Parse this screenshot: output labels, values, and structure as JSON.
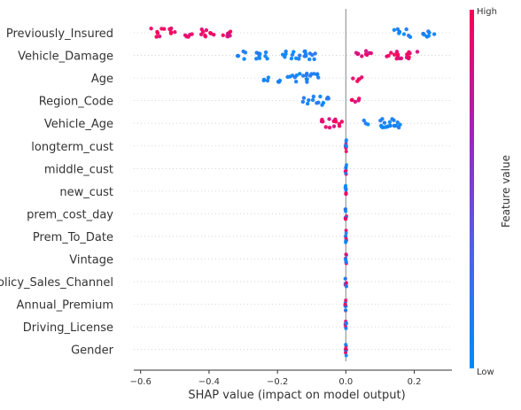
{
  "chart_data": {
    "type": "scatter",
    "subtype": "shap_beeswarm_summary",
    "xlabel": "SHAP value (impact on model output)",
    "xlim": [
      -0.62,
      0.31
    ],
    "x_ticks": [
      -0.6,
      -0.4,
      -0.2,
      0.0,
      0.2
    ],
    "x_tick_labels": [
      "−0.6",
      "−0.4",
      "−0.2",
      "0.0",
      "0.2"
    ],
    "features": [
      {
        "name": "Previously_Insured",
        "high_value_ranges": [
          [
            -0.57,
            -0.53
          ],
          [
            -0.52,
            -0.49
          ],
          [
            -0.47,
            -0.44
          ],
          [
            -0.43,
            -0.38
          ],
          [
            -0.37,
            -0.33
          ]
        ],
        "low_value_ranges": [
          [
            0.13,
            0.16
          ],
          [
            0.17,
            0.19
          ],
          [
            0.22,
            0.27
          ]
        ]
      },
      {
        "name": "Vehicle_Damage",
        "high_value_ranges": [
          [
            0.03,
            0.08
          ],
          [
            0.11,
            0.21
          ]
        ],
        "low_value_ranges": [
          [
            -0.32,
            -0.29
          ],
          [
            -0.27,
            -0.22
          ],
          [
            -0.19,
            -0.15
          ],
          [
            -0.15,
            -0.08
          ]
        ]
      },
      {
        "name": "Age",
        "high_value_ranges": [
          [
            0.02,
            0.05
          ]
        ],
        "low_value_ranges": [
          [
            -0.24,
            -0.22
          ],
          [
            -0.2,
            -0.08
          ]
        ]
      },
      {
        "name": "Region_Code",
        "high_value_ranges": [
          [
            0.01,
            0.04
          ]
        ],
        "low_value_ranges": [
          [
            -0.13,
            -0.05
          ]
        ]
      },
      {
        "name": "Vehicle_Age",
        "high_value_ranges": [
          [
            -0.08,
            -0.01
          ]
        ],
        "low_value_ranges": [
          [
            0.03,
            0.16
          ]
        ]
      },
      {
        "name": "longterm_cust",
        "range": [
          -0.002,
          0.002
        ]
      },
      {
        "name": "middle_cust",
        "range": [
          -0.002,
          0.002
        ]
      },
      {
        "name": "new_cust",
        "range": [
          -0.002,
          0.002
        ]
      },
      {
        "name": "prem_cost_day",
        "range": [
          -0.002,
          0.002
        ]
      },
      {
        "name": "Prem_To_Date",
        "range": [
          -0.002,
          0.002
        ]
      },
      {
        "name": "Vintage",
        "range": [
          -0.002,
          0.002
        ]
      },
      {
        "name": "Policy_Sales_Channel",
        "range": [
          -0.002,
          0.002
        ]
      },
      {
        "name": "Annual_Premium",
        "range": [
          -0.002,
          0.002
        ]
      },
      {
        "name": "Driving_License",
        "range": [
          -0.002,
          0.002
        ]
      },
      {
        "name": "Gender",
        "range": [
          -0.002,
          0.002
        ]
      }
    ],
    "colorbar": {
      "label": "Feature value",
      "high_label": "High",
      "low_label": "Low",
      "high_color": "#ff0052",
      "low_color": "#008bfb"
    },
    "grid": false,
    "zero_line": true
  }
}
